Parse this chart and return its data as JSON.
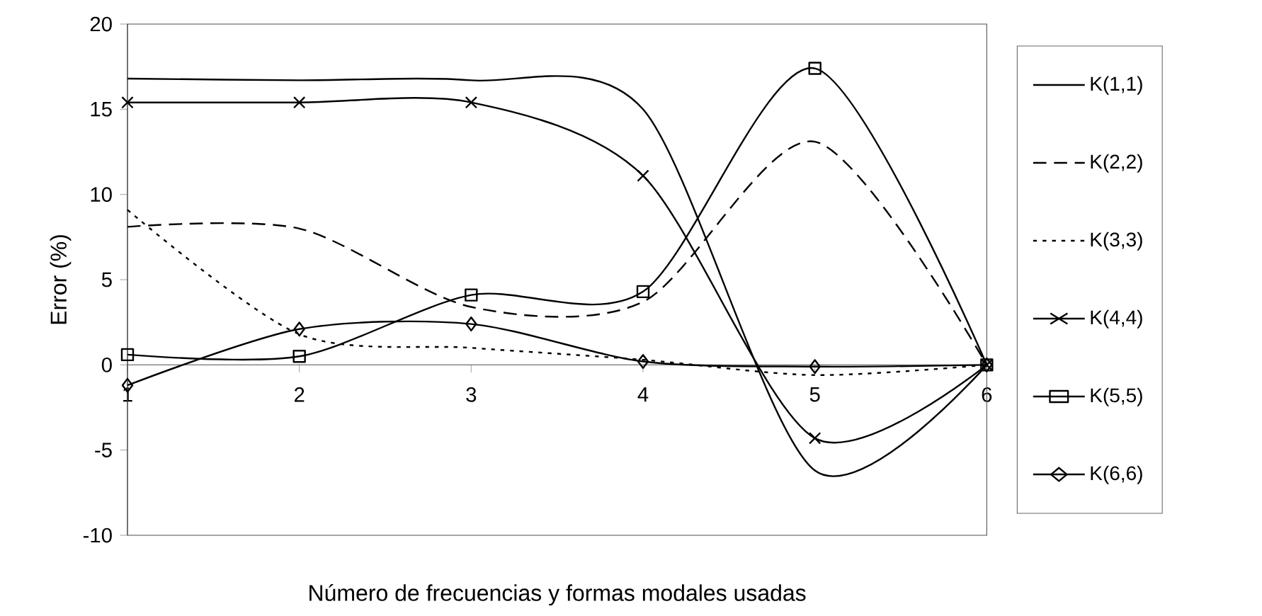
{
  "chart_data": {
    "type": "line",
    "xlabel": "Número de frecuencias y formas modales usadas",
    "ylabel": "Error (%)",
    "categories": [
      "1",
      "2",
      "3",
      "4",
      "5",
      "6"
    ],
    "ylim": [
      -10,
      20
    ],
    "yticks": [
      -10,
      -5,
      0,
      5,
      10,
      15,
      20
    ],
    "grid": false,
    "legend": "right",
    "series": [
      {
        "name": "K(1,1)",
        "color": "#000000",
        "marker": "none",
        "line_style": "solid",
        "values": [
          16.8,
          16.7,
          16.7,
          15.0,
          -6.2,
          0
        ]
      },
      {
        "name": "K(2,2)",
        "color": "#000000",
        "marker": "none",
        "line_style": "dashed",
        "values": [
          8.1,
          8.0,
          3.4,
          3.7,
          13.1,
          0
        ]
      },
      {
        "name": "K(3,3)",
        "color": "#000000",
        "marker": "none",
        "line_style": "dotted",
        "values": [
          9.1,
          1.8,
          1.0,
          0.3,
          -0.6,
          0
        ]
      },
      {
        "name": "K(4,4)",
        "color": "#000000",
        "marker": "cross",
        "line_style": "solid",
        "values": [
          15.4,
          15.4,
          15.4,
          11.1,
          -4.3,
          0
        ]
      },
      {
        "name": "K(5,5)",
        "color": "#000000",
        "marker": "square",
        "line_style": "solid",
        "values": [
          0.6,
          0.5,
          4.1,
          4.3,
          17.4,
          0
        ]
      },
      {
        "name": "K(6,6)",
        "color": "#000000",
        "marker": "diamond",
        "line_style": "solid",
        "values": [
          -1.2,
          2.1,
          2.4,
          0.2,
          -0.1,
          0
        ]
      }
    ]
  }
}
